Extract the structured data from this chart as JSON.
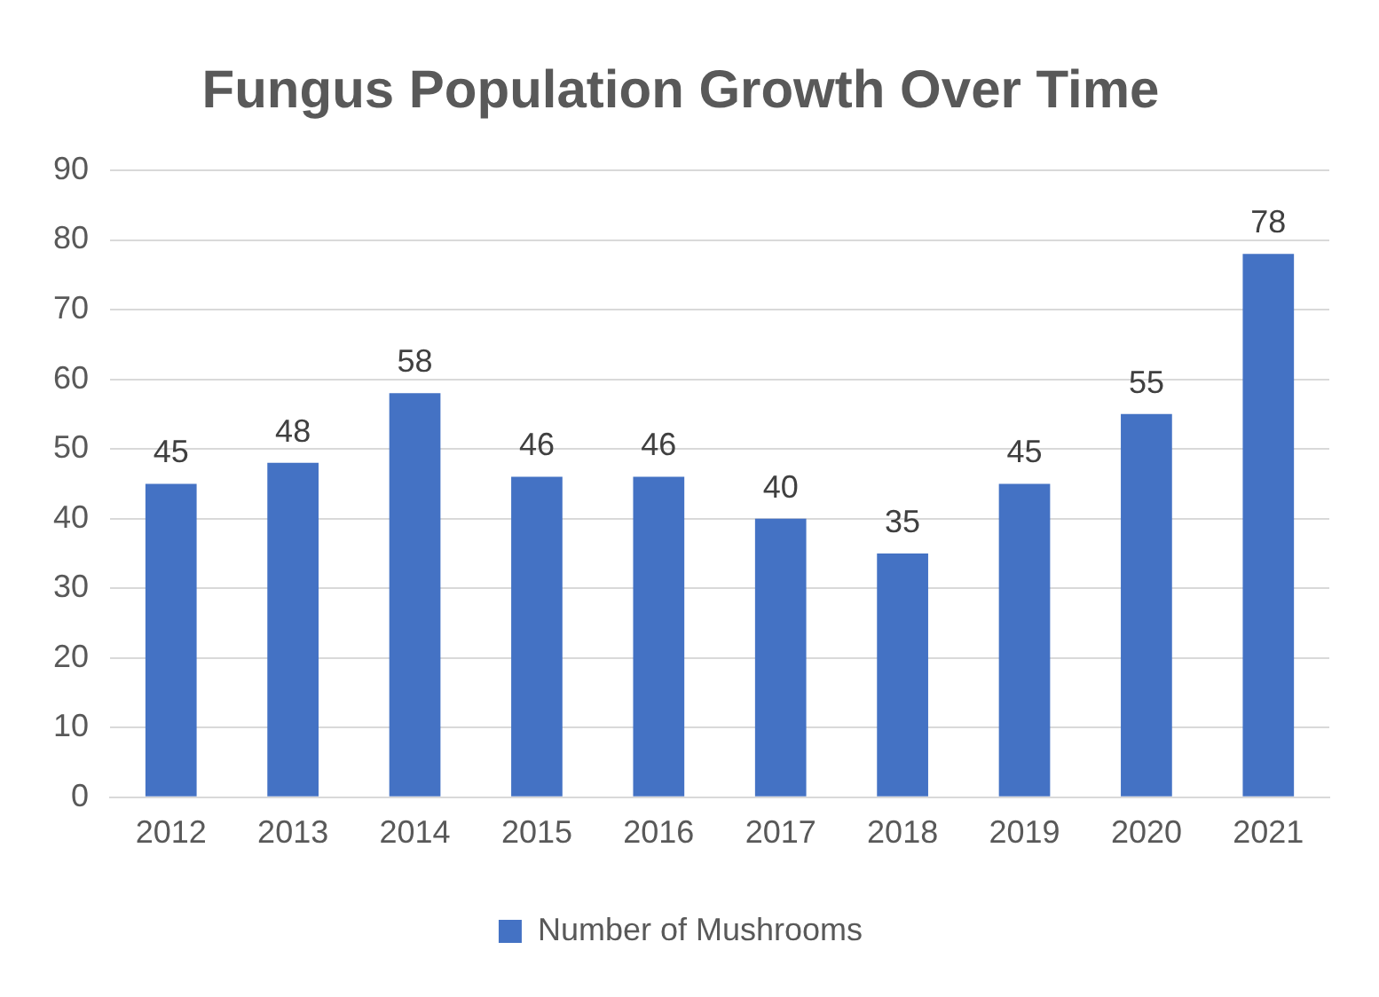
{
  "chart_data": {
    "type": "bar",
    "title": "Fungus Population Growth Over Time",
    "categories": [
      "2012",
      "2013",
      "2014",
      "2015",
      "2016",
      "2017",
      "2018",
      "2019",
      "2020",
      "2021"
    ],
    "series": [
      {
        "name": "Number of Mushrooms",
        "color": "#4472c4",
        "values": [
          45,
          48,
          58,
          46,
          46,
          40,
          35,
          45,
          55,
          78
        ]
      }
    ],
    "ylim": [
      0,
      90
    ],
    "yticks": [
      0,
      10,
      20,
      30,
      40,
      50,
      60,
      70,
      80,
      90
    ],
    "grid": "y",
    "legend": "bottom",
    "data_labels": true
  }
}
